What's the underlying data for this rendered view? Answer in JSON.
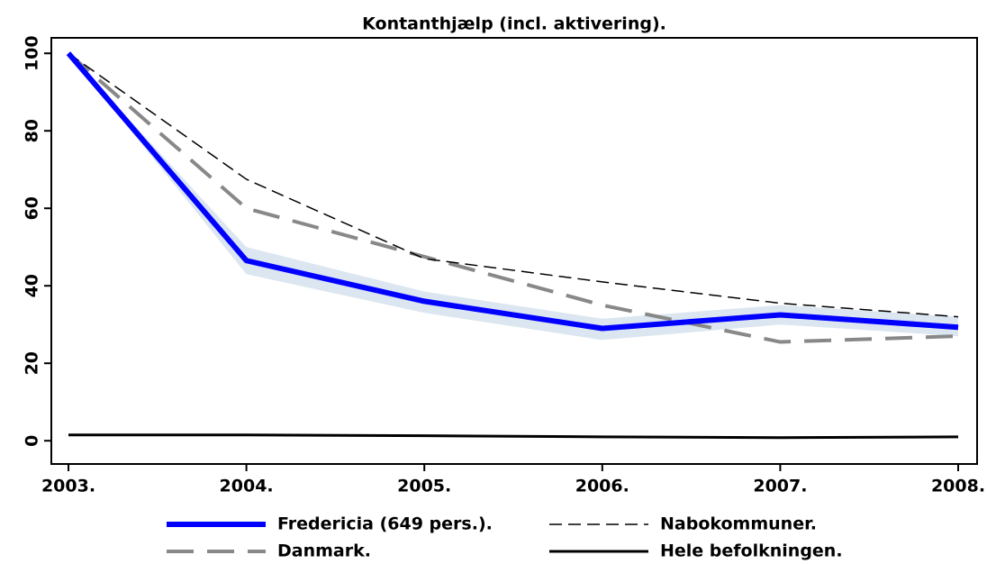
{
  "chart_data": {
    "type": "line",
    "title": "Kontanthjælp (incl. aktivering).",
    "categories": [
      "2003.",
      "2004.",
      "2005.",
      "2006.",
      "2007.",
      "2008."
    ],
    "ylim": [
      -6,
      104
    ],
    "yticks": [
      0,
      20,
      40,
      60,
      80,
      100
    ],
    "series": [
      {
        "name": "Fredericia (649 pers.).",
        "color": "#0000ff",
        "style": "thick",
        "values": [
          100,
          46.5,
          36,
          29,
          32.5,
          29.3
        ],
        "band": {
          "color": "#dce6f0",
          "lower": [
            100,
            43,
            33,
            26,
            30,
            27
          ],
          "upper": [
            100,
            50,
            38.5,
            31.5,
            35,
            32
          ]
        }
      },
      {
        "name": "Nabokommuner.",
        "color": "#000000",
        "style": "dash",
        "values": [
          100,
          67.5,
          47,
          41,
          35.5,
          32
        ]
      },
      {
        "name": "Danmark.",
        "color": "#888888",
        "style": "longdash",
        "values": [
          100,
          60,
          47.5,
          35,
          25.5,
          27
        ]
      },
      {
        "name": "Hele befolkningen.",
        "color": "#000000",
        "style": "solid",
        "values": [
          1.5,
          1.5,
          1.3,
          1,
          0.8,
          1
        ]
      }
    ]
  }
}
